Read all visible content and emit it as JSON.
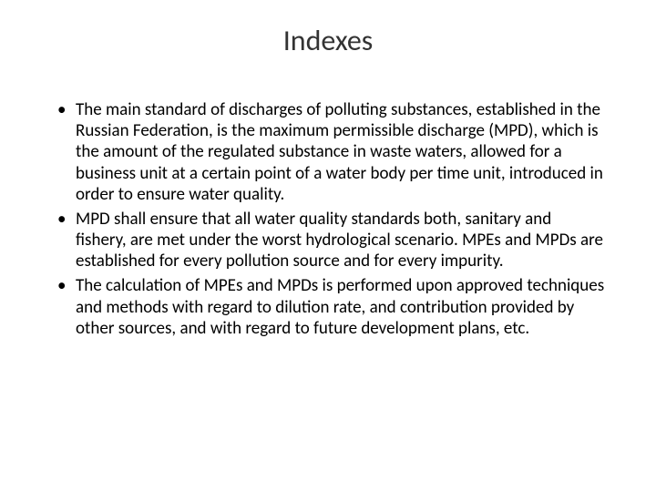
{
  "slide": {
    "title": "Indexes",
    "bullets": [
      "The main standard of discharges of polluting substances, established in the Russian Federation, is the maximum permissible discharge (MPD), which is the amount of the regulated substance in waste waters, allowed for a business unit at a certain point of a water body per time unit, introduced in order to ensure water quality.",
      "MPD shall ensure that all water quality standards both, sanitary and fishery, are met under the worst hydrological scenario. MPEs and MPDs are established for every pollution source and for every impurity.",
      "The calculation of MPEs and MPDs is performed upon approved techniques and methods with regard to dilution rate, and contribution provided by other sources, and with regard to future development plans, etc."
    ],
    "title_fontsize": 32,
    "body_fontsize": 19,
    "title_color": "#333333",
    "text_color": "#000000",
    "background_color": "#ffffff"
  }
}
